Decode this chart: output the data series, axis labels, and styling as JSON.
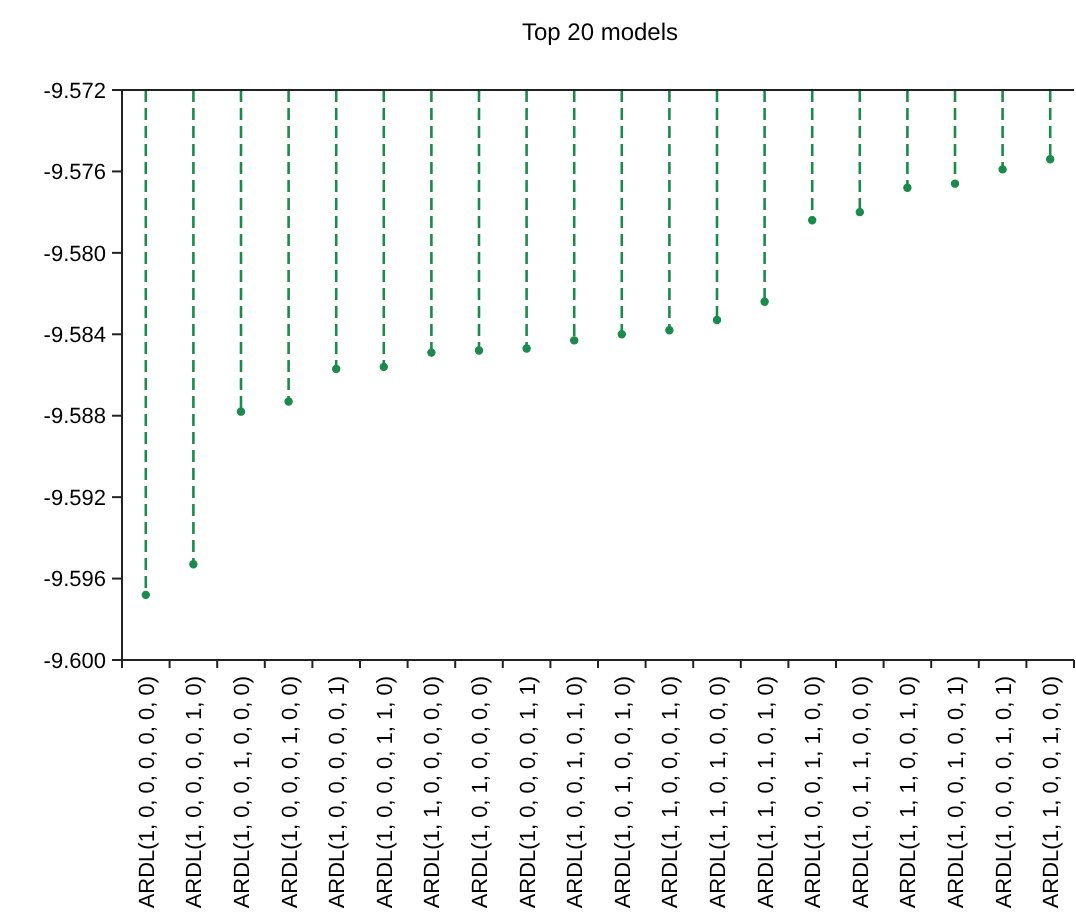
{
  "chart_data": {
    "type": "lollipop",
    "title": "Top 20 models",
    "categories": [
      "ARDL(1, 0, 0, 0, 0, 0, 0)",
      "ARDL(1, 0, 0, 0, 0, 1, 0)",
      "ARDL(1, 0, 0, 1, 0, 0, 0)",
      "ARDL(1, 0, 0, 0, 1, 0, 0)",
      "ARDL(1, 0, 0, 0, 0, 0, 1)",
      "ARDL(1, 0, 0, 0, 1, 1, 0)",
      "ARDL(1, 1, 0, 0, 0, 0, 0)",
      "ARDL(1, 0, 1, 0, 0, 0, 0)",
      "ARDL(1, 0, 0, 0, 0, 1, 1)",
      "ARDL(1, 0, 0, 1, 0, 1, 0)",
      "ARDL(1, 0, 1, 0, 0, 1, 0)",
      "ARDL(1, 1, 0, 0, 0, 1, 0)",
      "ARDL(1, 1, 0, 1, 0, 0, 0)",
      "ARDL(1, 1, 0, 1, 0, 1, 0)",
      "ARDL(1, 0, 0, 1, 1, 0, 0)",
      "ARDL(1, 0, 1, 1, 0, 0, 0)",
      "ARDL(1, 1, 1, 0, 0, 1, 0)",
      "ARDL(1, 0, 0, 1, 0, 0, 1)",
      "ARDL(1, 0, 0, 0, 1, 0, 1)",
      "ARDL(1, 1, 0, 0, 1, 0, 0)"
    ],
    "values": [
      -9.5968,
      -9.5953,
      -9.5878,
      -9.5873,
      -9.5857,
      -9.5856,
      -9.5849,
      -9.5848,
      -9.5847,
      -9.5843,
      -9.584,
      -9.5838,
      -9.5833,
      -9.5824,
      -9.5784,
      -9.578,
      -9.5768,
      -9.5766,
      -9.5759,
      -9.5754
    ],
    "color": "#1b8a4c",
    "marker": "circle",
    "line_style": "dashed",
    "ylim": [
      -9.6,
      -9.572
    ],
    "yticks": [
      {
        "value": -9.6,
        "label": "-9.600"
      },
      -9.596,
      -9.592,
      -9.588,
      -9.584,
      {
        "value": -9.58,
        "label": "-9.580"
      },
      -9.576,
      -9.572
    ]
  }
}
